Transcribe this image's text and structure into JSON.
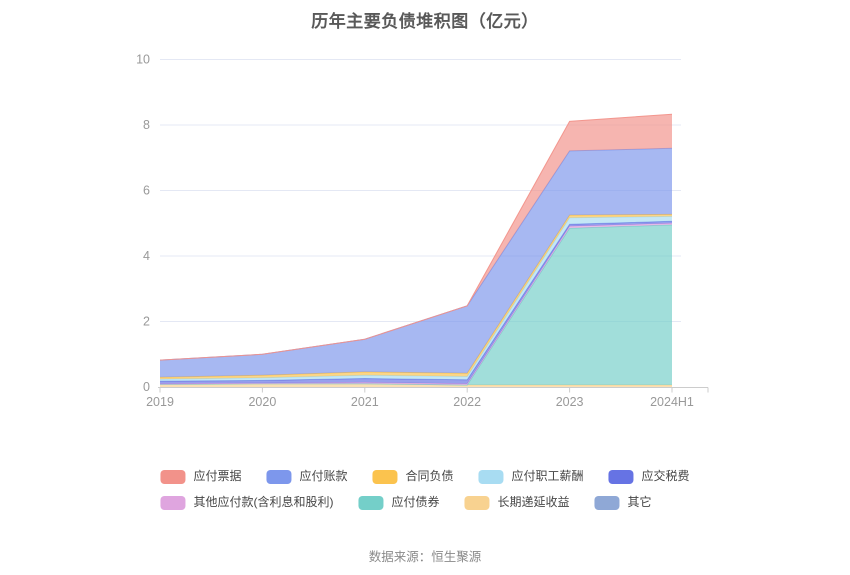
{
  "title": "历年主要负债堆积图（亿元）",
  "source": "数据来源：恒生聚源",
  "chart_data": {
    "type": "area",
    "stacked": true,
    "title": "历年主要负债堆积图（亿元）",
    "categories": [
      "2019",
      "2020",
      "2021",
      "2022",
      "2023",
      "2024H1"
    ],
    "series": [
      {
        "name": "应付票据",
        "color": "#F2928A",
        "values": [
          0,
          0,
          0,
          0,
          0.9,
          1.04
        ]
      },
      {
        "name": "应付账款",
        "color": "#7D97EC",
        "values": [
          0.52,
          0.64,
          1.0,
          2.06,
          1.96,
          2.02
        ]
      },
      {
        "name": "合同负债",
        "color": "#FBC34E",
        "values": [
          0.06,
          0.08,
          0.1,
          0.1,
          0.08,
          0.06
        ]
      },
      {
        "name": "应付职工薪酬",
        "color": "#A8DCF2",
        "values": [
          0.06,
          0.08,
          0.1,
          0.1,
          0.2,
          0.15
        ]
      },
      {
        "name": "应交税费",
        "color": "#6673E4",
        "values": [
          0.08,
          0.08,
          0.12,
          0.12,
          0.06,
          0.06
        ]
      },
      {
        "name": "其他应付款(含利息和股利)",
        "color": "#DFA5DF",
        "values": [
          0.02,
          0.02,
          0.04,
          0.04,
          0.06,
          0.05
        ]
      },
      {
        "name": "应付债券",
        "color": "#74CFC9",
        "values": [
          0,
          0,
          0,
          0,
          4.79,
          4.89
        ]
      },
      {
        "name": "长期递延收益",
        "color": "#F8D290",
        "values": [
          0.08,
          0.1,
          0.1,
          0.06,
          0.06,
          0.06
        ]
      },
      {
        "name": "其它",
        "color": "#8FA8D6",
        "values": [
          0,
          0,
          0,
          0,
          0,
          0
        ]
      }
    ],
    "stack_order_bottom_to_top": [
      "其它",
      "长期递延收益",
      "应付债券",
      "其他应付款(含利息和股利)",
      "应交税费",
      "应付职工薪酬",
      "合同负债",
      "应付账款",
      "应付票据"
    ],
    "legend_rows": [
      [
        "应付票据",
        "应付账款",
        "合同负债",
        "应付职工薪酬",
        "应交税费"
      ],
      [
        "其他应付款(含利息和股利)",
        "应付债券",
        "长期递延收益",
        "其它"
      ]
    ],
    "xlabel": "",
    "ylabel": "",
    "ylim": [
      0,
      10
    ],
    "y_ticks": [
      0,
      2,
      4,
      6,
      8,
      10
    ],
    "grid": true,
    "legend_position": "bottom",
    "area_opacity": 0.68
  },
  "colors": {
    "title_text": "#595959",
    "axis_label": "#999999",
    "axis_line": "#cccccc",
    "grid_line": "#E4E8F4",
    "legend_text": "#464646",
    "source_text": "#8a8a8a",
    "background": "#ffffff"
  }
}
